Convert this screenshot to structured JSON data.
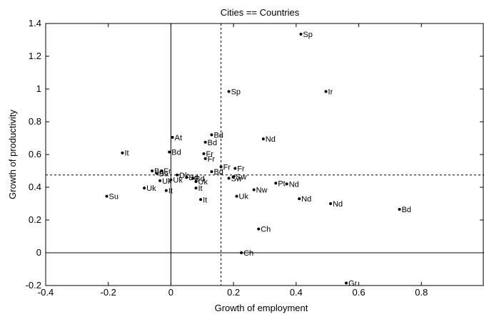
{
  "chart_data": {
    "type": "scatter",
    "title": "Cities == Countries",
    "xlabel": "Growth of employment",
    "ylabel": "Growth of productivity",
    "xlim": [
      -0.4,
      1.0
    ],
    "ylim": [
      -0.2,
      1.4
    ],
    "xticks": [
      -0.4,
      -0.2,
      0,
      0.2,
      0.4,
      0.6,
      0.8
    ],
    "xtick_labels": [
      "-0.4",
      "-0.2",
      "0",
      "0.2",
      "0.4",
      "0.6",
      "0.8"
    ],
    "yticks": [
      -0.2,
      0,
      0.2,
      0.4,
      0.6,
      0.8,
      1.0,
      1.2,
      1.4
    ],
    "ytick_labels": [
      "-0.2",
      "0",
      "0.2",
      "0.4",
      "0.6",
      "0.8",
      "1",
      "1.2",
      "1.4"
    ],
    "grid": false,
    "reference_lines": {
      "solid_vertical_x": 0,
      "solid_horizontal_y": 0,
      "dashed_vertical_x": 0.16,
      "dashed_horizontal_y": 0.475
    },
    "points": [
      {
        "label": "Sp",
        "x": 0.415,
        "y": 1.335
      },
      {
        "label": "Sp",
        "x": 0.185,
        "y": 0.985
      },
      {
        "label": "Ir",
        "x": 0.495,
        "y": 0.985
      },
      {
        "label": "At",
        "x": 0.005,
        "y": 0.705
      },
      {
        "label": "Bd",
        "x": 0.13,
        "y": 0.72
      },
      {
        "label": "Bd",
        "x": 0.11,
        "y": 0.675
      },
      {
        "label": "Nd",
        "x": 0.295,
        "y": 0.695
      },
      {
        "label": "Bd",
        "x": -0.005,
        "y": 0.615
      },
      {
        "label": "It",
        "x": -0.155,
        "y": 0.61
      },
      {
        "label": "Fr",
        "x": 0.105,
        "y": 0.605
      },
      {
        "label": "Fr",
        "x": 0.11,
        "y": 0.575
      },
      {
        "label": "Fr",
        "x": 0.16,
        "y": 0.525
      },
      {
        "label": "Fr",
        "x": 0.205,
        "y": 0.515
      },
      {
        "label": "Bd",
        "x": 0.13,
        "y": 0.495
      },
      {
        "label": "Ba",
        "x": -0.06,
        "y": 0.5
      },
      {
        "label": "Fr",
        "x": -0.03,
        "y": 0.5
      },
      {
        "label": "Ba",
        "x": -0.045,
        "y": 0.485
      },
      {
        "label": "Dk",
        "x": 0.02,
        "y": 0.475
      },
      {
        "label": "Bd",
        "x": 0.05,
        "y": 0.46
      },
      {
        "label": "Bd",
        "x": 0.07,
        "y": 0.455
      },
      {
        "label": "Sw",
        "x": 0.2,
        "y": 0.465
      },
      {
        "label": "Sw",
        "x": 0.185,
        "y": 0.455
      },
      {
        "label": "Uk",
        "x": -0.035,
        "y": 0.44
      },
      {
        "label": "Uk",
        "x": 0.0,
        "y": 0.445
      },
      {
        "label": "Uk",
        "x": 0.08,
        "y": 0.435
      },
      {
        "label": "Pt",
        "x": 0.335,
        "y": 0.425
      },
      {
        "label": "Nd",
        "x": 0.37,
        "y": 0.42
      },
      {
        "label": "Uk",
        "x": -0.085,
        "y": 0.395
      },
      {
        "label": "It",
        "x": -0.015,
        "y": 0.38
      },
      {
        "label": "It",
        "x": 0.08,
        "y": 0.395
      },
      {
        "label": "Nw",
        "x": 0.265,
        "y": 0.385
      },
      {
        "label": "Su",
        "x": -0.205,
        "y": 0.345
      },
      {
        "label": "Uk",
        "x": 0.21,
        "y": 0.345
      },
      {
        "label": "It",
        "x": 0.095,
        "y": 0.325
      },
      {
        "label": "Nd",
        "x": 0.41,
        "y": 0.33
      },
      {
        "label": "Nd",
        "x": 0.51,
        "y": 0.3
      },
      {
        "label": "Bd",
        "x": 0.73,
        "y": 0.265
      },
      {
        "label": "Ch",
        "x": 0.28,
        "y": 0.145
      },
      {
        "label": "Ch",
        "x": 0.225,
        "y": 0.0
      },
      {
        "label": "Gr",
        "x": 0.56,
        "y": -0.185
      }
    ]
  }
}
